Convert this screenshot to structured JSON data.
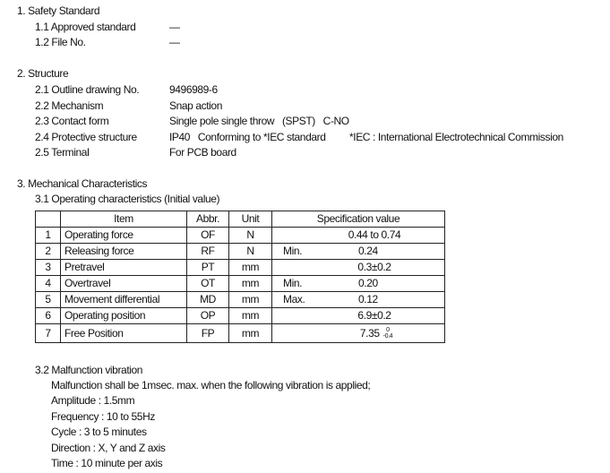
{
  "s1": {
    "title": "1.  Safety Standard",
    "items": [
      {
        "label": "1.1 Approved standard",
        "value": "—"
      },
      {
        "label": "1.2 File No.",
        "value": "—"
      }
    ]
  },
  "s2": {
    "title": "2.  Structure",
    "items": [
      {
        "label": "2.1 Outline drawing No.",
        "value": "9496989-6"
      },
      {
        "label": "2.2 Mechanism",
        "value": "Snap action"
      },
      {
        "label": "2.3 Contact form",
        "value": "Single pole single throw   (SPST)   C-NO"
      },
      {
        "label": "2.4 Protective structure",
        "value": "IP40   Conforming to *IEC standard",
        "note": "*IEC : International Electrotechnical Commission"
      },
      {
        "label": "2.5 Terminal",
        "value": "For PCB board"
      }
    ]
  },
  "s3": {
    "title": "3.  Mechanical Characteristics",
    "sub1": "3.1 Operating characteristics (Initial value)",
    "table": {
      "headers": [
        "",
        "Item",
        "Abbr.",
        "Unit",
        "Specification value"
      ],
      "rows": [
        {
          "no": "1",
          "item": "Operating force",
          "abbr": "OF",
          "unit": "N",
          "qual": "",
          "value": "0.44 to 0.74"
        },
        {
          "no": "2",
          "item": "Releasing force",
          "abbr": "RF",
          "unit": "N",
          "qual": "Min.",
          "value": "0.24"
        },
        {
          "no": "3",
          "item": "Pretravel",
          "abbr": "PT",
          "unit": "mm",
          "qual": "",
          "value": "0.3±0.2"
        },
        {
          "no": "4",
          "item": "Overtravel",
          "abbr": "OT",
          "unit": "mm",
          "qual": "Min.",
          "value": "0.20"
        },
        {
          "no": "5",
          "item": "Movement differential",
          "abbr": "MD",
          "unit": "mm",
          "qual": "Max.",
          "value": "0.12"
        },
        {
          "no": "6",
          "item": "Operating position",
          "abbr": "OP",
          "unit": "mm",
          "qual": "",
          "value": "6.9±0.2"
        },
        {
          "no": "7",
          "item": "Free Position",
          "abbr": "FP",
          "unit": "mm",
          "qual": "",
          "value": "7.35",
          "tol_upper": "0",
          "tol_lower": "-0.4"
        }
      ]
    },
    "sub2": "3.2 Malfunction vibration",
    "vib": [
      "Malfunction shall be 1msec. max. when the following vibration is applied;",
      "Amplitude : 1.5mm",
      "Frequency : 10 to 55Hz",
      "Cycle : 3 to 5 minutes",
      "Direction : X, Y and Z axis",
      "Time : 10 minute per axis"
    ]
  }
}
